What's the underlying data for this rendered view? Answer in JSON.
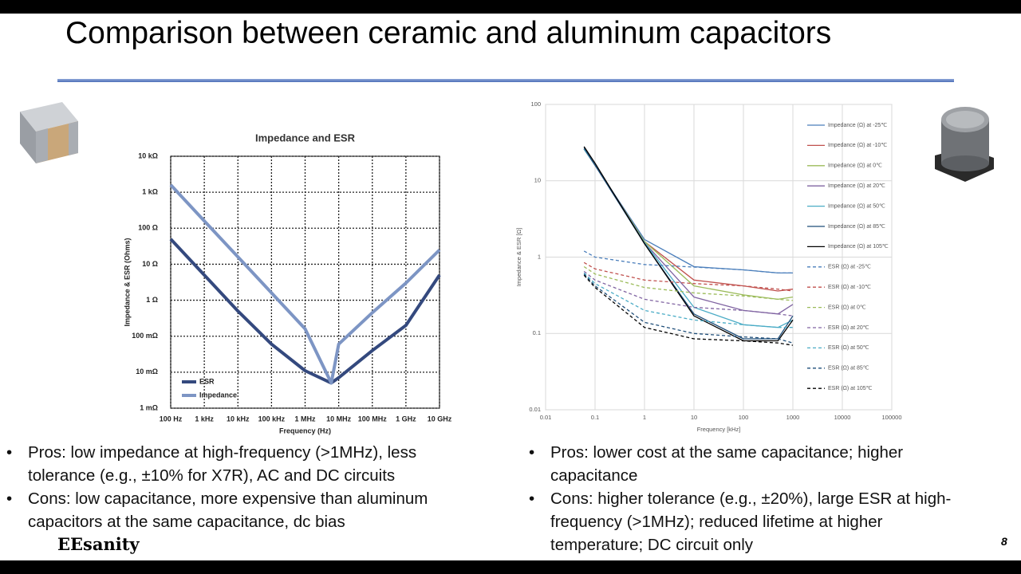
{
  "title": "Comparison between ceramic and aluminum capacitors",
  "chart_data": [
    {
      "type": "line",
      "title": "Impedance and ESR",
      "x_label": "Frequency (Hz)",
      "y_label": "Impedance & ESR (Ohms)",
      "log_x": true,
      "log_y": true,
      "grid": true,
      "grid_style": "dotted",
      "legend": "lower-left",
      "xlim": [
        100,
        10000000000
      ],
      "ylim": [
        0.001,
        10000
      ],
      "xticks": [
        {
          "value": 100,
          "label": "100 Hz"
        },
        {
          "value": 1000,
          "label": "1 kHz"
        },
        {
          "value": 10000,
          "label": "10 kHz"
        },
        {
          "value": 100000,
          "label": "100 kHz"
        },
        {
          "value": 1000000,
          "label": "1 MHz"
        },
        {
          "value": 10000000,
          "label": "10 MHz"
        },
        {
          "value": 100000000,
          "label": "100 MHz"
        },
        {
          "value": 1000000000,
          "label": "1 GHz"
        },
        {
          "value": 10000000000,
          "label": "10 GHz"
        }
      ],
      "yticks": [
        {
          "value": 10000,
          "label": "10 kΩ"
        },
        {
          "value": 1000,
          "label": "1 kΩ"
        },
        {
          "value": 100,
          "label": "100 Ω"
        },
        {
          "value": 10,
          "label": "10 Ω"
        },
        {
          "value": 1,
          "label": "1 Ω"
        },
        {
          "value": 0.1,
          "label": "100 mΩ"
        },
        {
          "value": 0.01,
          "label": "10 mΩ"
        },
        {
          "value": 0.001,
          "label": "1 mΩ"
        }
      ],
      "x": [
        100,
        1000,
        10000,
        100000,
        1000000,
        6000000,
        10000000,
        100000000,
        1000000000,
        10000000000
      ],
      "series": [
        {
          "name": "ESR",
          "color": "#34497e",
          "values": [
            50,
            5,
            0.5,
            0.06,
            0.011,
            0.005,
            0.007,
            0.04,
            0.2,
            5
          ]
        },
        {
          "name": "Impedance",
          "color": "#7d95c4",
          "values": [
            1600,
            160,
            16,
            1.6,
            0.16,
            0.005,
            0.06,
            0.45,
            3,
            25
          ]
        }
      ]
    },
    {
      "type": "line",
      "x_label": "Frequency [kHz]",
      "y_label": "Impedance & ESR [Ω]",
      "log_x": true,
      "log_y": true,
      "grid": true,
      "grid_style": "solid",
      "legend": "right",
      "xlim": [
        0.01,
        100000
      ],
      "ylim": [
        0.01,
        100
      ],
      "xticks": [
        0.01,
        0.1,
        1,
        10,
        100,
        1000,
        10000,
        100000
      ],
      "yticks": [
        0.01,
        0.1,
        1,
        10,
        100
      ],
      "x": [
        0.06,
        0.1,
        1,
        10,
        100,
        500,
        1000
      ],
      "series": [
        {
          "name": "Impedance (Ω) at -25℃",
          "color": "#4a7ebb",
          "dashed": false,
          "values": [
            26,
            16,
            1.7,
            0.75,
            0.68,
            0.62,
            0.62
          ]
        },
        {
          "name": "Impedance (Ω) at -10℃",
          "color": "#c0504d",
          "dashed": false,
          "values": [
            26,
            16,
            1.6,
            0.5,
            0.42,
            0.36,
            0.38
          ]
        },
        {
          "name": "Impedance (Ω) at 0℃",
          "color": "#9bbb59",
          "dashed": false,
          "values": [
            26,
            16,
            1.6,
            0.42,
            0.32,
            0.28,
            0.3
          ]
        },
        {
          "name": "Impedance (Ω) at 20℃",
          "color": "#8064a2",
          "dashed": false,
          "values": [
            26,
            16,
            1.55,
            0.3,
            0.2,
            0.18,
            0.24
          ]
        },
        {
          "name": "Impedance (Ω) at 50℃",
          "color": "#4bacc6",
          "dashed": false,
          "values": [
            26,
            16,
            1.55,
            0.22,
            0.13,
            0.12,
            0.15
          ]
        },
        {
          "name": "Impedance (Ω) at 85℃",
          "color": "#1f4e79",
          "dashed": false,
          "values": [
            27,
            16,
            1.5,
            0.18,
            0.085,
            0.085,
            0.17
          ]
        },
        {
          "name": "Impedance (Ω) at 105℃",
          "color": "#000000",
          "dashed": false,
          "values": [
            28,
            17,
            1.5,
            0.17,
            0.08,
            0.08,
            0.15
          ]
        },
        {
          "name": "ESR (Ω) at -25℃",
          "color": "#4a7ebb",
          "dashed": true,
          "values": [
            1.2,
            1.0,
            0.8,
            0.74,
            0.68,
            0.62,
            0.62
          ]
        },
        {
          "name": "ESR (Ω) at -10℃",
          "color": "#c0504d",
          "dashed": true,
          "values": [
            0.85,
            0.7,
            0.5,
            0.45,
            0.42,
            0.38,
            0.36
          ]
        },
        {
          "name": "ESR (Ω) at 0℃",
          "color": "#9bbb59",
          "dashed": true,
          "values": [
            0.75,
            0.6,
            0.4,
            0.34,
            0.31,
            0.28,
            0.27
          ]
        },
        {
          "name": "ESR (Ω) at 20℃",
          "color": "#8064a2",
          "dashed": true,
          "values": [
            0.65,
            0.5,
            0.28,
            0.22,
            0.2,
            0.18,
            0.17
          ]
        },
        {
          "name": "ESR (Ω) at 50℃",
          "color": "#4bacc6",
          "dashed": true,
          "values": [
            0.62,
            0.45,
            0.2,
            0.15,
            0.13,
            0.12,
            0.12
          ]
        },
        {
          "name": "ESR (Ω) at 85℃",
          "color": "#1f4e79",
          "dashed": true,
          "values": [
            0.6,
            0.42,
            0.14,
            0.1,
            0.09,
            0.085,
            0.075
          ]
        },
        {
          "name": "ESR (Ω) at 105℃",
          "color": "#000000",
          "dashed": true,
          "values": [
            0.58,
            0.4,
            0.12,
            0.085,
            0.08,
            0.075,
            0.07
          ]
        }
      ]
    }
  ],
  "left_bullets": [
    "Pros: low impedance at high-frequency (>1MHz), less tolerance (e.g., ±10% for X7R), AC and DC circuits",
    "Cons: low capacitance, more expensive than aluminum capacitors at the same capacitance, dc bias"
  ],
  "right_bullets": [
    "Pros: lower cost at the same capacitance; higher capacitance",
    "Cons: higher tolerance (e.g., ±20%), large ESR at high-frequency (>1MHz); reduced lifetime at higher temperature; DC circuit only"
  ],
  "logo": "EEsanity",
  "page_number": "8"
}
